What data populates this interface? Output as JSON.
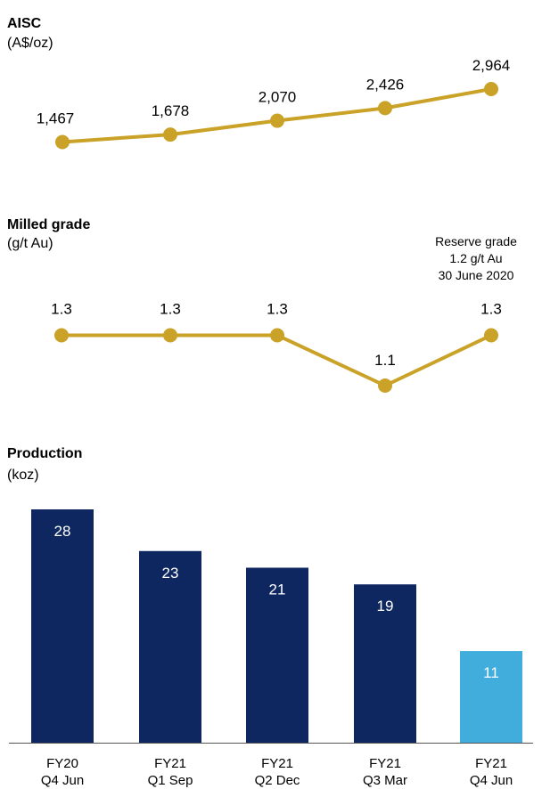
{
  "colors": {
    "line": "#C9A227",
    "bar_dark": "#0E2761",
    "bar_light": "#41ADDC",
    "axis": "#555555"
  },
  "chart_data": [
    {
      "type": "line",
      "title": "AISC",
      "unit": "(A$/oz)",
      "categories": [
        "FY20 Q4 Jun",
        "FY21 Q1 Sep",
        "FY21 Q2 Dec",
        "FY21 Q3 Mar",
        "FY21 Q4 Jun"
      ],
      "values": [
        1467,
        1678,
        2070,
        2426,
        2964
      ],
      "value_labels": [
        "1,467",
        "1,678",
        "2,070",
        "2,426",
        "2,964"
      ]
    },
    {
      "type": "line",
      "title": "Milled grade",
      "unit": "(g/t Au)",
      "categories": [
        "FY20 Q4 Jun",
        "FY21 Q1 Sep",
        "FY21 Q2 Dec",
        "FY21 Q3 Mar",
        "FY21 Q4 Jun"
      ],
      "values": [
        1.3,
        1.3,
        1.3,
        1.1,
        1.3
      ],
      "value_labels": [
        "1.3",
        "1.3",
        "1.3",
        "1.1",
        "1.3"
      ],
      "annotation": [
        "Reserve grade",
        "1.2 g/t Au",
        "30 June 2020"
      ]
    },
    {
      "type": "bar",
      "title": "Production",
      "unit": "(koz)",
      "categories": [
        "FY20 Q4 Jun",
        "FY21 Q1 Sep",
        "FY21 Q2 Dec",
        "FY21 Q3 Mar",
        "FY21 Q4 Jun"
      ],
      "category_lines": [
        [
          "FY20",
          "Q4 Jun"
        ],
        [
          "FY21",
          "Q1 Sep"
        ],
        [
          "FY21",
          "Q2 Dec"
        ],
        [
          "FY21",
          "Q3 Mar"
        ],
        [
          "FY21",
          "Q4 Jun"
        ]
      ],
      "values": [
        28,
        23,
        21,
        19,
        11
      ],
      "highlight_last": true
    }
  ]
}
